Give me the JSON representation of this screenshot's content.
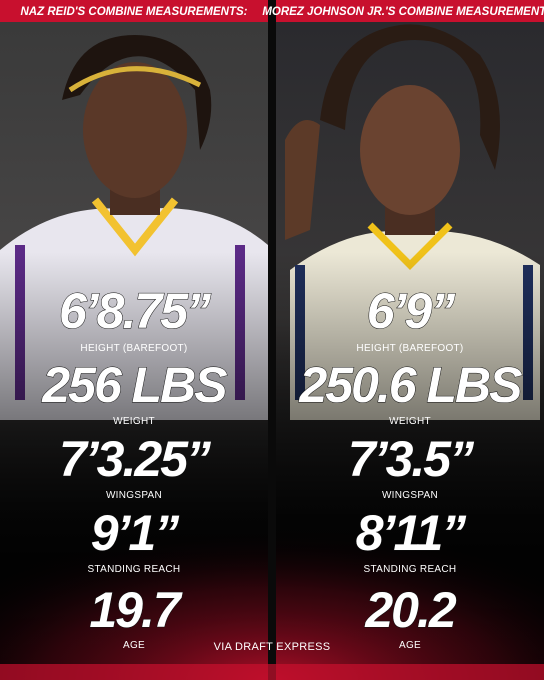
{
  "left": {
    "header": "NAZ REID'S COMBINE MEASUREMENTS:",
    "stats": [
      {
        "value": "6’8.75”",
        "label": "HEIGHT (BAREFOOT)"
      },
      {
        "value": "256 LBS",
        "label": "WEIGHT"
      },
      {
        "value": "7’3.25”",
        "label": "WINGSPAN"
      },
      {
        "value": "9’1”",
        "label": "STANDING REACH"
      },
      {
        "value": "19.7",
        "label": "AGE"
      }
    ]
  },
  "right": {
    "header": "MOREZ JOHNSON JR.'S COMBINE MEASUREMENTS:",
    "stats": [
      {
        "value": "6’9”",
        "label": "HEIGHT (BAREFOOT)"
      },
      {
        "value": "250.6 LBS",
        "label": "WEIGHT"
      },
      {
        "value": "7’3.5”",
        "label": "WINGSPAN"
      },
      {
        "value": "8’11”",
        "label": "STANDING REACH"
      },
      {
        "value": "20.2",
        "label": "AGE"
      }
    ]
  },
  "footer": "VIA DRAFT EXPRESS"
}
